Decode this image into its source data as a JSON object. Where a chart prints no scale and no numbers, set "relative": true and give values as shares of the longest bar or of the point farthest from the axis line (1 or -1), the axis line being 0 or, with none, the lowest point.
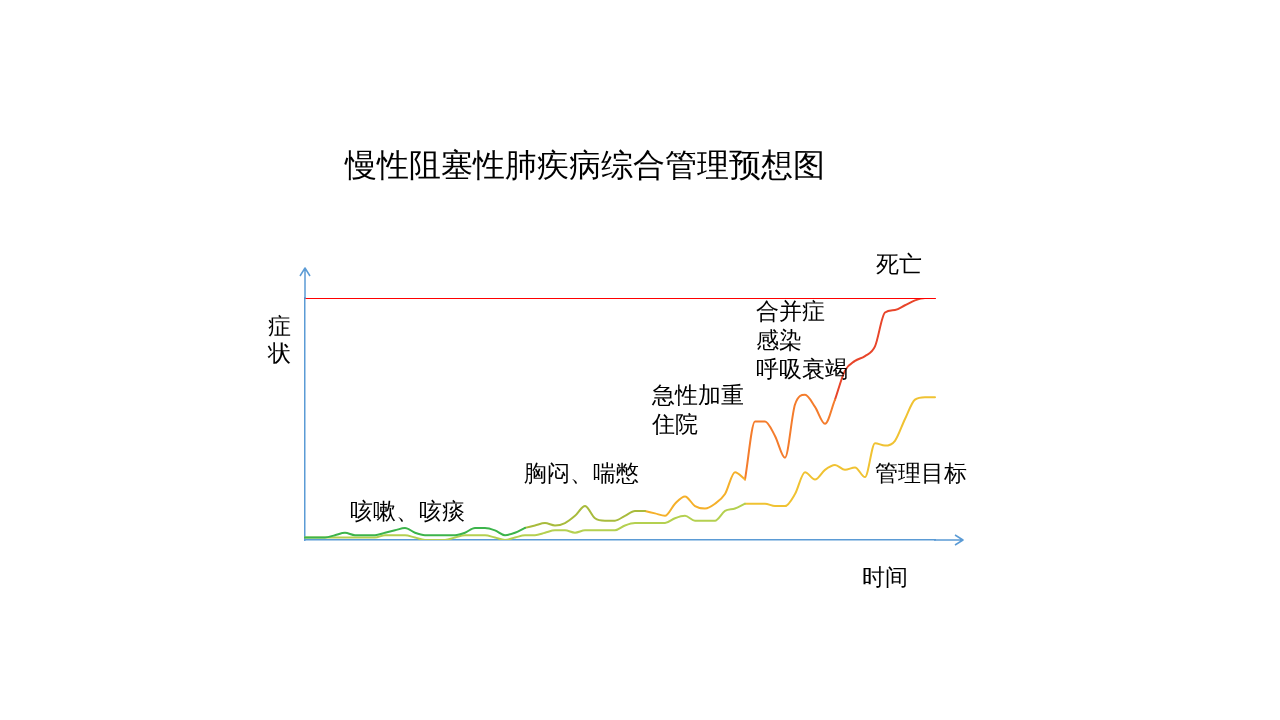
{
  "chart_data": {
    "type": "line",
    "title": "慢性阻塞性肺疾病综合管理预想图",
    "xlabel": "时间",
    "ylabel": "症状",
    "relative": true,
    "marker": "none",
    "categories": [
      null,
      null,
      null,
      null,
      null,
      null,
      null,
      null,
      null,
      null,
      null,
      null,
      null,
      null,
      null,
      null,
      null,
      null,
      null,
      null,
      null,
      null,
      null,
      null,
      null,
      null,
      null,
      null,
      null,
      null,
      null,
      null,
      null,
      null,
      null,
      null,
      null,
      null,
      null,
      null,
      null,
      null,
      null,
      null,
      null,
      null,
      null,
      null,
      null,
      null,
      null,
      null,
      null,
      null,
      null,
      null,
      null,
      null,
      null,
      null,
      null,
      null,
      null,
      null
    ],
    "series": [
      {
        "name": "死亡",
        "color": "#ff0000",
        "values": [
          1,
          1,
          1,
          1,
          1,
          1,
          1,
          1,
          1,
          1,
          1,
          1,
          1,
          1,
          1,
          1,
          1,
          1,
          1,
          1,
          1,
          1,
          1,
          1,
          1,
          1,
          1,
          1,
          1,
          1,
          1,
          1,
          1,
          1,
          1,
          1,
          1,
          1,
          1,
          1,
          1,
          1,
          1,
          1,
          1,
          1,
          1,
          1,
          1,
          1,
          1,
          1,
          1,
          1,
          1,
          1,
          1,
          1,
          1,
          1,
          1,
          1,
          1,
          1
        ]
      },
      {
        "color": "#3cb44b",
        "values": [
          0.01,
          0.01,
          0.01,
          0.02,
          0.03,
          0.02,
          0.02,
          0.02,
          0.03,
          0.04,
          0.05,
          0.03,
          0.02,
          0.02,
          0.02,
          0.02,
          0.03,
          0.05,
          0.05,
          0.04,
          0.02,
          0.03,
          0.05,
          null,
          null,
          null,
          null,
          null,
          null,
          null,
          null,
          null,
          null,
          null,
          null,
          null,
          null,
          null,
          null,
          null,
          null,
          null,
          null,
          null,
          null,
          null,
          null,
          null,
          null,
          null,
          null,
          null,
          null,
          null,
          null,
          null,
          null,
          null,
          null,
          null,
          null,
          null,
          null,
          null
        ]
      },
      {
        "color": "#a8bb3c",
        "values": [
          null,
          null,
          null,
          null,
          null,
          null,
          null,
          null,
          null,
          null,
          null,
          null,
          null,
          null,
          null,
          null,
          null,
          null,
          null,
          null,
          null,
          null,
          0.05,
          0.06,
          0.07,
          0.06,
          0.07,
          0.1,
          0.14,
          0.09,
          0.08,
          0.08,
          0.1,
          0.12,
          0.12,
          null,
          null,
          null,
          null,
          null,
          null,
          null,
          null,
          null,
          null,
          null,
          null,
          null,
          null,
          null,
          null,
          null,
          null,
          null,
          null,
          null,
          null,
          null,
          null,
          null,
          null,
          null,
          null,
          null
        ]
      },
      {
        "color": "#f5b02a",
        "values": [
          null,
          null,
          null,
          null,
          null,
          null,
          null,
          null,
          null,
          null,
          null,
          null,
          null,
          null,
          null,
          null,
          null,
          null,
          null,
          null,
          null,
          null,
          null,
          null,
          null,
          null,
          null,
          null,
          null,
          null,
          null,
          null,
          null,
          null,
          0.12,
          0.11,
          0.1,
          0.15,
          0.18,
          0.14,
          0.13,
          0.15,
          0.19,
          0.28,
          0.25,
          null,
          null,
          null,
          null,
          null,
          null,
          null,
          null,
          null,
          null,
          null,
          null,
          null,
          null,
          null,
          null,
          null,
          null,
          null
        ]
      },
      {
        "color": "#f47c2c",
        "values": [
          null,
          null,
          null,
          null,
          null,
          null,
          null,
          null,
          null,
          null,
          null,
          null,
          null,
          null,
          null,
          null,
          null,
          null,
          null,
          null,
          null,
          null,
          null,
          null,
          null,
          null,
          null,
          null,
          null,
          null,
          null,
          null,
          null,
          null,
          null,
          null,
          null,
          null,
          null,
          null,
          null,
          null,
          null,
          null,
          0.25,
          0.49,
          0.49,
          0.43,
          0.34,
          0.56,
          0.6,
          0.55,
          0.48,
          0.58,
          null,
          null,
          null,
          null,
          null,
          null,
          null,
          null,
          null,
          null
        ]
      },
      {
        "color": "#e8452a",
        "values": [
          null,
          null,
          null,
          null,
          null,
          null,
          null,
          null,
          null,
          null,
          null,
          null,
          null,
          null,
          null,
          null,
          null,
          null,
          null,
          null,
          null,
          null,
          null,
          null,
          null,
          null,
          null,
          null,
          null,
          null,
          null,
          null,
          null,
          null,
          null,
          null,
          null,
          null,
          null,
          null,
          null,
          null,
          null,
          null,
          null,
          null,
          null,
          null,
          null,
          null,
          null,
          null,
          null,
          0.58,
          0.7,
          0.74,
          0.76,
          0.8,
          0.94,
          0.95,
          0.97,
          0.99,
          1,
          1
        ]
      },
      {
        "color": "#b4d050",
        "values": [
          0.01,
          0.01,
          0.01,
          0.01,
          0.01,
          0.01,
          0.01,
          0.01,
          0.02,
          0.02,
          0.02,
          0.01,
          0,
          0,
          0,
          0.01,
          0.02,
          0.02,
          0.02,
          0.01,
          0,
          0.01,
          0.02,
          0.02,
          0.03,
          0.04,
          0.04,
          0.03,
          0.04,
          0.04,
          0.04,
          0.04,
          0.06,
          0.07,
          0.07,
          0.07,
          0.07,
          0.09,
          0.1,
          0.08,
          0.08,
          0.08,
          0.12,
          0.13,
          0.15,
          null,
          null,
          null,
          null,
          null,
          null,
          null,
          null,
          null,
          null,
          null,
          null,
          null,
          null,
          null,
          null,
          null,
          null,
          null
        ]
      },
      {
        "name": "管理目标",
        "color": "#f0c232",
        "values": [
          null,
          null,
          null,
          null,
          null,
          null,
          null,
          null,
          null,
          null,
          null,
          null,
          null,
          null,
          null,
          null,
          null,
          null,
          null,
          null,
          null,
          null,
          null,
          null,
          null,
          null,
          null,
          null,
          null,
          null,
          null,
          null,
          null,
          null,
          null,
          null,
          null,
          null,
          null,
          null,
          null,
          null,
          null,
          null,
          0.15,
          0.15,
          0.15,
          0.14,
          0.14,
          0.19,
          0.28,
          0.25,
          0.29,
          0.31,
          0.29,
          0.3,
          0.26,
          0.4,
          0.39,
          0.41,
          0.5,
          0.58,
          0.59,
          0.59
        ]
      }
    ],
    "annotations": [
      "咳嗽、咳痰",
      "胸闷、喘憋",
      "急性加重",
      "住院",
      "合并症",
      "感染",
      "呼吸衰竭"
    ]
  }
}
